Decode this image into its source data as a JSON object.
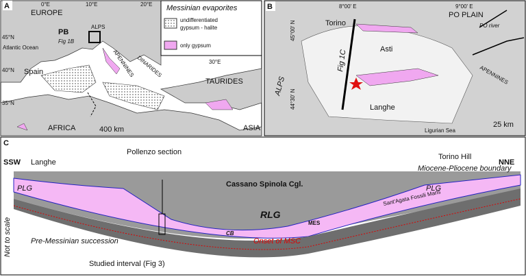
{
  "panel_a": {
    "letter": "A",
    "europe": "EUROPE",
    "lon_0": "0°E",
    "lon_10": "10°E",
    "lon_20": "20°E",
    "lon_30": "30°E",
    "lat_45": "45°N",
    "lat_40": "40°N",
    "lat_35": "35°N",
    "atlantic": "Atlantic Ocean",
    "pb": "PB",
    "fig1b": "Fig 1B",
    "alps": "ALPS",
    "dinarides": "DINARIDES",
    "apennines": "APENNINES",
    "spain": "Spain",
    "taurides": "TAURIDES",
    "africa": "AFRICA",
    "asia": "ASIA",
    "scale": "400 km",
    "legend": {
      "title": "Messinian evaporites",
      "undiff_1": "undifferentiated",
      "undiff_2": "gypsum - halite",
      "gypsum": "only gypsum"
    }
  },
  "panel_b": {
    "letter": "B",
    "lon_8": "8°00' E",
    "lon_9": "9°00' E",
    "po_plain": "PO PLAIN",
    "torino": "Torino",
    "asti": "Asti",
    "fig1c": "Fig 1C",
    "alps": "ALPS",
    "lat_45": "45°00' N",
    "lat_4430": "44°30' N",
    "apennines": "APENNINES",
    "po_river": "PO river",
    "langhe": "Langhe",
    "ligurian": "Ligurian Sea",
    "scale": "25 km"
  },
  "panel_c": {
    "letter": "C",
    "ssw": "SSW",
    "langhe": "Langhe",
    "pollenzo": "Pollenzo section",
    "torino_hill": "Torino Hill",
    "nne": "NNE",
    "boundary": "Miocene-Pliocene boundary",
    "plg_left": "PLG",
    "cassano": "Cassano Spinola Cgl.",
    "plg_right": "PLG",
    "rlg": "RLG",
    "mes": "MES",
    "sant_agata": "Sant'Agata Fossili Marls",
    "cb": "CB",
    "onset": "Onset of MSC",
    "pre_messinian": "Pre-Messinian succession",
    "not_to_scale": "Not to scale",
    "studied": "Studied interval (Fig 3)"
  }
}
